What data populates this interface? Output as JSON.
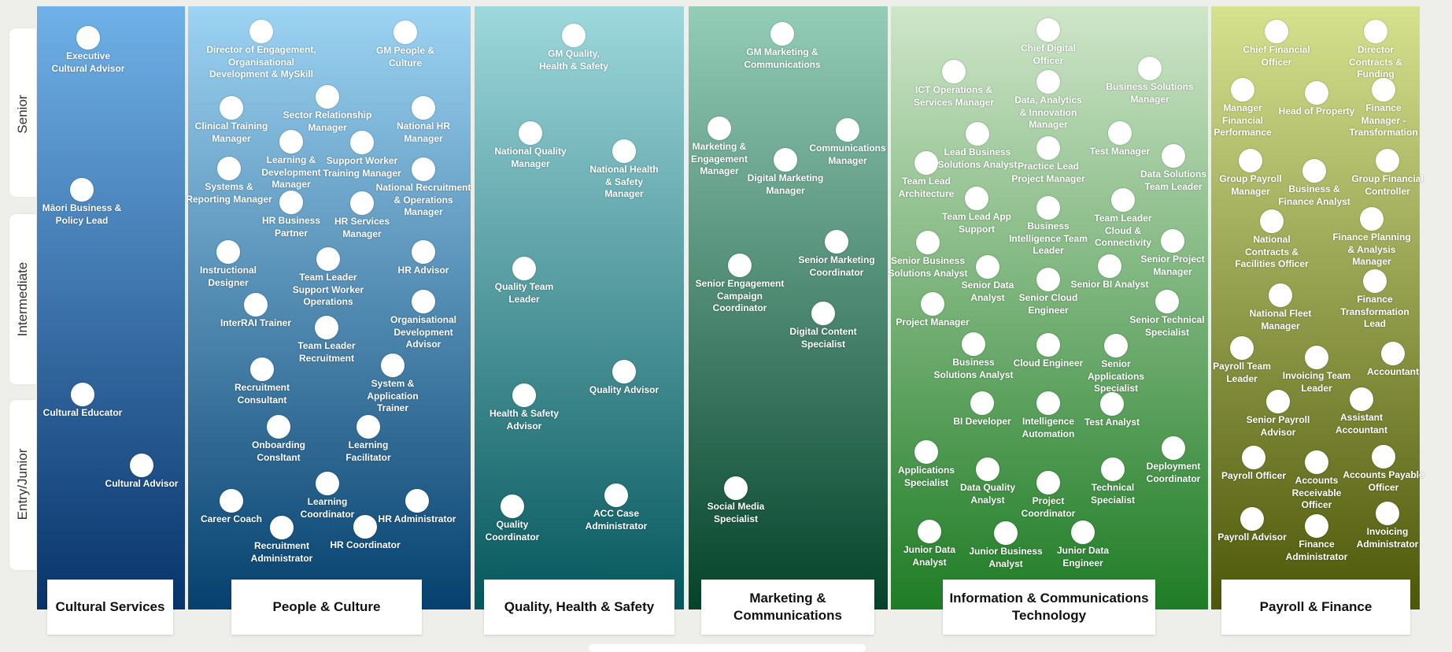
{
  "levels": [
    "Senior",
    "Intermediate",
    "Entry/Junior"
  ],
  "colors": {
    "cultural": [
      "#6fb1e8",
      "#07336a"
    ],
    "people": [
      "#9dd4f4",
      "#05406e"
    ],
    "quality": [
      "#9dd8dc",
      "#04575c"
    ],
    "marketing": [
      "#94cdb8",
      "#04422a"
    ],
    "ict": [
      "#cfe6c9",
      "#1f7c25"
    ],
    "finance": [
      "#d6e28e",
      "#4d5708"
    ]
  },
  "departments": [
    {
      "name": "Cultural Services",
      "roles": [
        "Executive\nCultural Advisor",
        "Māori Business &\nPolicy Lead",
        "Cultural Educator",
        "Cultural Advisor"
      ]
    },
    {
      "name": "People & Culture",
      "roles": [
        "Director of Engagement,\nOrganisational\nDevelopment & MySkill",
        "GM People &\nCulture",
        "Clinical Training\nManager",
        "Sector Relationship\nManager",
        "National HR\nManager",
        "Learning &\nDevelopment\nManager",
        "Support Worker\nTraining Manager",
        "Systems &\nReporting Manager",
        "National Recruitment\n& Operations\nManager",
        "HR Business\nPartner",
        "HR Services\nManager",
        "Instructional\nDesigner",
        "Team Leader\nSupport Worker\nOperations",
        "HR Advisor",
        "InterRAI Trainer",
        "Organisational\nDevelopment\nAdvisor",
        "Team Leader\nRecruitment",
        "Recruitment\nConsultant",
        "System &\nApplication\nTrainer",
        "Onboarding\nConsltant",
        "Learning\nFacilitator",
        "Learning\nCoordinator",
        "Career Coach",
        "HR Administrator",
        "Recruitment\nAdministrator",
        "HR Coordinator"
      ]
    },
    {
      "name": "Quality, Health & Safety",
      "roles": [
        "GM Quality,\nHealth & Safety",
        "National Quality\nManager",
        "National Health\n& Safety\nManager",
        "Quality Team\nLeader",
        "Quality Advisor",
        "Health & Safety\nAdvisor",
        "ACC Case\nAdministrator",
        "Quality\nCoordinator"
      ]
    },
    {
      "name": "Marketing &\nCommunications",
      "roles": [
        "GM Marketing &\nCommunications",
        "Marketing &\nEngagement\nManager",
        "Communications\nManager",
        "Digital Marketing\nManager",
        "Senior Marketing\nCoordinator",
        "Senior Engagement\nCampaign\nCoordinator",
        "Digital Content\nSpecialist",
        "Social Media\nSpecialist"
      ]
    },
    {
      "name": "Information & Communications\nTechnology",
      "roles": [
        "Chief Digital\nOfficer",
        "ICT Operations &\nServices Manager",
        "Data, Analytics\n& Innovation\nManager",
        "Business Solutions\nManager",
        "Lead Business\nSolutions Analyst",
        "Practice Lead\nProject Manager",
        "Test Manager",
        "Data Solutions\nTeam Leader",
        "Team Lead\nArchitecture",
        "Team Lead App\nSupport",
        "Business\nIntelligence Team\nLeader",
        "Team Leader\nCloud &\nConnectivity",
        "Senior Business\nSolutions Analyst",
        "Senior Data\nAnalyst",
        "Senior Cloud\nEngineer",
        "Senior BI Analyst",
        "Senior Project\nManager",
        "Project Manager",
        "Senior Technical\nSpecialist",
        "Business\nSolutions Analyst",
        "Cloud Engineer",
        "Senior\nApplications\nSpecialist",
        "BI Developer",
        "Intelligence\nAutomation",
        "Test Analyst",
        "Applications\nSpecialist",
        "Data Quality\nAnalyst",
        "Project\nCoordinator",
        "Technical\nSpecialist",
        "Deployment\nCoordinator",
        "Junior Data\nAnalyst",
        "Junior Business\nAnalyst",
        "Junior Data\nEngineer"
      ]
    },
    {
      "name": "Payroll & Finance",
      "roles": [
        "Chief Financial\nOfficer",
        "Director\nContracts &\nFunding",
        "Manager\nFinancial\nPerformance",
        "Head of Property",
        "Finance\nManager -\nTransformation",
        "Group Payroll\nManager",
        "Business &\nFinance Analyst",
        "Group Financial\nController",
        "National\nContracts &\nFacilities Officer",
        "Finance Planning\n& Analysis\nManager",
        "National Fleet\nManager",
        "Finance\nTransformation\nLead",
        "Payroll Team\nLeader",
        "Invoicing Team\nLeader",
        "Accountant",
        "Senior Payroll\nAdvisor",
        "Assistant\nAccountant",
        "Payroll Officer",
        "Accounts\nReceivable\nOfficer",
        "Accounts Payable\nOfficer",
        "Payroll Advisor",
        "Finance\nAdministrator",
        "Invoicing\nAdministrator"
      ]
    }
  ]
}
